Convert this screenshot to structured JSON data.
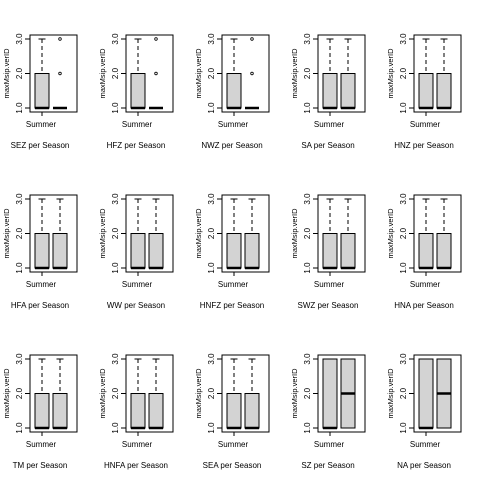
{
  "chart_data": [
    {
      "type": "boxplot",
      "title": "SEZ per Season",
      "ylabel": "maxMsip.verID",
      "xlabel": "Summer",
      "yticks": [
        "1.0",
        "2.0",
        "3.0"
      ],
      "ylim": [
        1,
        3
      ],
      "boxes": [
        {
          "whislo": 1,
          "q1": 1,
          "med": 1,
          "q3": 2,
          "whishi": 3
        },
        {
          "whislo": 1,
          "q1": 1,
          "med": 1,
          "q3": 1,
          "whishi": 1,
          "outliers": [
            2,
            3
          ]
        }
      ]
    },
    {
      "type": "boxplot",
      "title": "HFZ per Season",
      "ylabel": "maxMsip.verID",
      "xlabel": "Summer",
      "yticks": [
        "1.0",
        "2.0",
        "3.0"
      ],
      "ylim": [
        1,
        3
      ],
      "boxes": [
        {
          "whislo": 1,
          "q1": 1,
          "med": 1,
          "q3": 2,
          "whishi": 3
        },
        {
          "whislo": 1,
          "q1": 1,
          "med": 1,
          "q3": 1,
          "whishi": 1,
          "outliers": [
            2,
            3
          ]
        }
      ]
    },
    {
      "type": "boxplot",
      "title": "NWZ per Season",
      "ylabel": "maxMsip.verID",
      "xlabel": "Summer",
      "yticks": [
        "1.0",
        "2.0",
        "3.0"
      ],
      "ylim": [
        1,
        3
      ],
      "boxes": [
        {
          "whislo": 1,
          "q1": 1,
          "med": 1,
          "q3": 2,
          "whishi": 3
        },
        {
          "whislo": 1,
          "q1": 1,
          "med": 1,
          "q3": 1,
          "whishi": 1,
          "outliers": [
            2,
            3
          ]
        }
      ]
    },
    {
      "type": "boxplot",
      "title": "SA per Season",
      "ylabel": "maxMsip.verID",
      "xlabel": "Summer",
      "yticks": [
        "1.0",
        "2.0",
        "3.0"
      ],
      "ylim": [
        1,
        3
      ],
      "boxes": [
        {
          "whislo": 1,
          "q1": 1,
          "med": 1,
          "q3": 2,
          "whishi": 3
        },
        {
          "whislo": 1,
          "q1": 1,
          "med": 1,
          "q3": 2,
          "whishi": 3
        }
      ]
    },
    {
      "type": "boxplot",
      "title": "HNZ per Season",
      "ylabel": "maxMsip.verID",
      "xlabel": "Summer",
      "yticks": [
        "1.0",
        "2.0",
        "3.0"
      ],
      "ylim": [
        1,
        3
      ],
      "boxes": [
        {
          "whislo": 1,
          "q1": 1,
          "med": 1,
          "q3": 2,
          "whishi": 3
        },
        {
          "whislo": 1,
          "q1": 1,
          "med": 1,
          "q3": 2,
          "whishi": 3
        }
      ]
    },
    {
      "type": "boxplot",
      "title": "HFA per Season",
      "ylabel": "maxMsip.verID",
      "xlabel": "Summer",
      "yticks": [
        "1.0",
        "2.0",
        "3.0"
      ],
      "ylim": [
        1,
        3
      ],
      "boxes": [
        {
          "whislo": 1,
          "q1": 1,
          "med": 1,
          "q3": 2,
          "whishi": 3
        },
        {
          "whislo": 1,
          "q1": 1,
          "med": 1,
          "q3": 2,
          "whishi": 3
        }
      ]
    },
    {
      "type": "boxplot",
      "title": "WW per Season",
      "ylabel": "maxMsip.verID",
      "xlabel": "Summer",
      "yticks": [
        "1.0",
        "2.0",
        "3.0"
      ],
      "ylim": [
        1,
        3
      ],
      "boxes": [
        {
          "whislo": 1,
          "q1": 1,
          "med": 1,
          "q3": 2,
          "whishi": 3
        },
        {
          "whislo": 1,
          "q1": 1,
          "med": 1,
          "q3": 2,
          "whishi": 3
        }
      ]
    },
    {
      "type": "boxplot",
      "title": "HNFZ per Season",
      "ylabel": "maxMsip.verID",
      "xlabel": "Summer",
      "yticks": [
        "1.0",
        "2.0",
        "3.0"
      ],
      "ylim": [
        1,
        3
      ],
      "boxes": [
        {
          "whislo": 1,
          "q1": 1,
          "med": 1,
          "q3": 2,
          "whishi": 3
        },
        {
          "whislo": 1,
          "q1": 1,
          "med": 1,
          "q3": 2,
          "whishi": 3
        }
      ]
    },
    {
      "type": "boxplot",
      "title": "SWZ per Season",
      "ylabel": "maxMsip.verID",
      "xlabel": "Summer",
      "yticks": [
        "1.0",
        "2.0",
        "3.0"
      ],
      "ylim": [
        1,
        3
      ],
      "boxes": [
        {
          "whislo": 1,
          "q1": 1,
          "med": 1,
          "q3": 2,
          "whishi": 3
        },
        {
          "whislo": 1,
          "q1": 1,
          "med": 1,
          "q3": 2,
          "whishi": 3
        }
      ]
    },
    {
      "type": "boxplot",
      "title": "HNA per Season",
      "ylabel": "maxMsip.verID",
      "xlabel": "Summer",
      "yticks": [
        "1.0",
        "2.0",
        "3.0"
      ],
      "ylim": [
        1,
        3
      ],
      "boxes": [
        {
          "whislo": 1,
          "q1": 1,
          "med": 1,
          "q3": 2,
          "whishi": 3
        },
        {
          "whislo": 1,
          "q1": 1,
          "med": 1,
          "q3": 2,
          "whishi": 3
        }
      ]
    },
    {
      "type": "boxplot",
      "title": "TM per Season",
      "ylabel": "maxMsip.verID",
      "xlabel": "Summer",
      "yticks": [
        "1.0",
        "2.0",
        "3.0"
      ],
      "ylim": [
        1,
        3
      ],
      "boxes": [
        {
          "whislo": 1,
          "q1": 1,
          "med": 1,
          "q3": 2,
          "whishi": 3
        },
        {
          "whislo": 1,
          "q1": 1,
          "med": 1,
          "q3": 2,
          "whishi": 3
        }
      ]
    },
    {
      "type": "boxplot",
      "title": "HNFA per Season",
      "ylabel": "maxMsip.verID",
      "xlabel": "Summer",
      "yticks": [
        "1.0",
        "2.0",
        "3.0"
      ],
      "ylim": [
        1,
        3
      ],
      "boxes": [
        {
          "whislo": 1,
          "q1": 1,
          "med": 1,
          "q3": 2,
          "whishi": 3
        },
        {
          "whislo": 1,
          "q1": 1,
          "med": 1,
          "q3": 2,
          "whishi": 3
        }
      ]
    },
    {
      "type": "boxplot",
      "title": "SEA per Season",
      "ylabel": "maxMsip.verID",
      "xlabel": "Summer",
      "yticks": [
        "1.0",
        "2.0",
        "3.0"
      ],
      "ylim": [
        1,
        3
      ],
      "boxes": [
        {
          "whislo": 1,
          "q1": 1,
          "med": 1,
          "q3": 2,
          "whishi": 3
        },
        {
          "whislo": 1,
          "q1": 1,
          "med": 1,
          "q3": 2,
          "whishi": 3
        }
      ]
    },
    {
      "type": "boxplot",
      "title": "SZ per Season",
      "ylabel": "maxMsip.verID",
      "xlabel": "Summer",
      "yticks": [
        "1.0",
        "2.0",
        "3.0"
      ],
      "ylim": [
        1,
        3
      ],
      "boxes": [
        {
          "whislo": 1,
          "q1": 1,
          "med": 1,
          "q3": 3,
          "whishi": 3
        },
        {
          "whislo": 1,
          "q1": 1,
          "med": 2,
          "q3": 3,
          "whishi": 3
        }
      ]
    },
    {
      "type": "boxplot",
      "title": "NA per Season",
      "ylabel": "maxMsip.verID",
      "xlabel": "Summer",
      "yticks": [
        "1.0",
        "2.0",
        "3.0"
      ],
      "ylim": [
        1,
        3
      ],
      "boxes": [
        {
          "whislo": 1,
          "q1": 1,
          "med": 1,
          "q3": 3,
          "whishi": 3
        },
        {
          "whislo": 1,
          "q1": 1,
          "med": 2,
          "q3": 3,
          "whishi": 3
        }
      ]
    }
  ],
  "colors": {
    "box_fill": "#d3d3d3",
    "stroke": "#000000",
    "background": "#ffffff"
  }
}
